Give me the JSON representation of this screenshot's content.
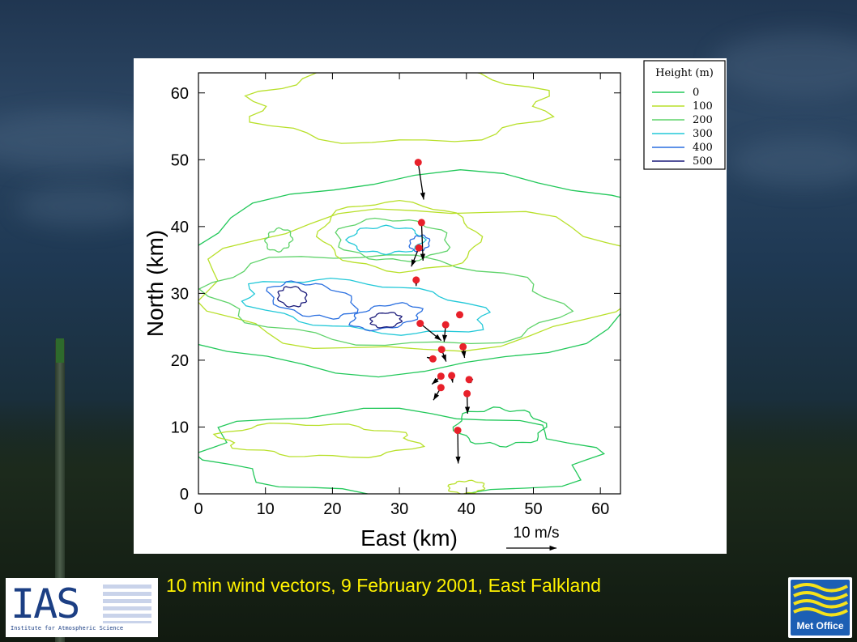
{
  "caption": "10 min wind vectors, 9 February 2001, East Falkland",
  "logos": {
    "ias": {
      "text": "IAS",
      "subtitle": "Institute for Atmospheric Science"
    },
    "met": {
      "text": "Met Office"
    }
  },
  "chart_data": {
    "type": "contour-vector-map",
    "xlabel": "East (km)",
    "ylabel": "North (km)",
    "xlim": [
      0,
      63
    ],
    "ylim": [
      0,
      63
    ],
    "xticks": [
      0,
      10,
      20,
      30,
      40,
      50,
      60
    ],
    "yticks": [
      0,
      10,
      20,
      30,
      40,
      50,
      60
    ],
    "legend": {
      "title": "Height (m)",
      "placement": "top-right",
      "levels": [
        {
          "label": "0",
          "color": "#22c85a"
        },
        {
          "label": "100",
          "color": "#b8e02a"
        },
        {
          "label": "200",
          "color": "#5fd36a"
        },
        {
          "label": "300",
          "color": "#22c8d8"
        },
        {
          "label": "400",
          "color": "#2a6fe0"
        },
        {
          "label": "500",
          "color": "#1a1a7a"
        }
      ]
    },
    "scale_arrow": {
      "label": "10 m/s",
      "speed": 10
    },
    "stations": [
      {
        "x": 32.8,
        "y": 49.6,
        "u": 1.1,
        "v": -7.4
      },
      {
        "x": 33.3,
        "y": 40.6,
        "u": 0.3,
        "v": -7.6
      },
      {
        "x": 32.9,
        "y": 36.8,
        "u": -1.5,
        "v": -3.7
      },
      {
        "x": 32.5,
        "y": 32.0,
        "u": 0.0,
        "v": -1.2
      },
      {
        "x": 39.0,
        "y": 26.8,
        "u": 0.0,
        "v": 0.0
      },
      {
        "x": 36.9,
        "y": 25.3,
        "u": -0.3,
        "v": -3.4
      },
      {
        "x": 33.1,
        "y": 25.5,
        "u": 4.2,
        "v": -3.4
      },
      {
        "x": 39.5,
        "y": 22.0,
        "u": 0.3,
        "v": -2.2
      },
      {
        "x": 36.3,
        "y": 21.6,
        "u": 0.9,
        "v": -2.4
      },
      {
        "x": 35.0,
        "y": 20.2,
        "u": -1.2,
        "v": 0.3
      },
      {
        "x": 36.2,
        "y": 17.6,
        "u": -1.8,
        "v": -1.6
      },
      {
        "x": 37.8,
        "y": 17.7,
        "u": 0.2,
        "v": -1.4
      },
      {
        "x": 40.4,
        "y": 17.1,
        "u": -0.6,
        "v": 0.3
      },
      {
        "x": 36.2,
        "y": 15.9,
        "u": -1.5,
        "v": -2.5
      },
      {
        "x": 40.1,
        "y": 15.0,
        "u": 0.1,
        "v": -4.0
      },
      {
        "x": 38.7,
        "y": 9.5,
        "u": 0.1,
        "v": -6.6
      }
    ]
  }
}
